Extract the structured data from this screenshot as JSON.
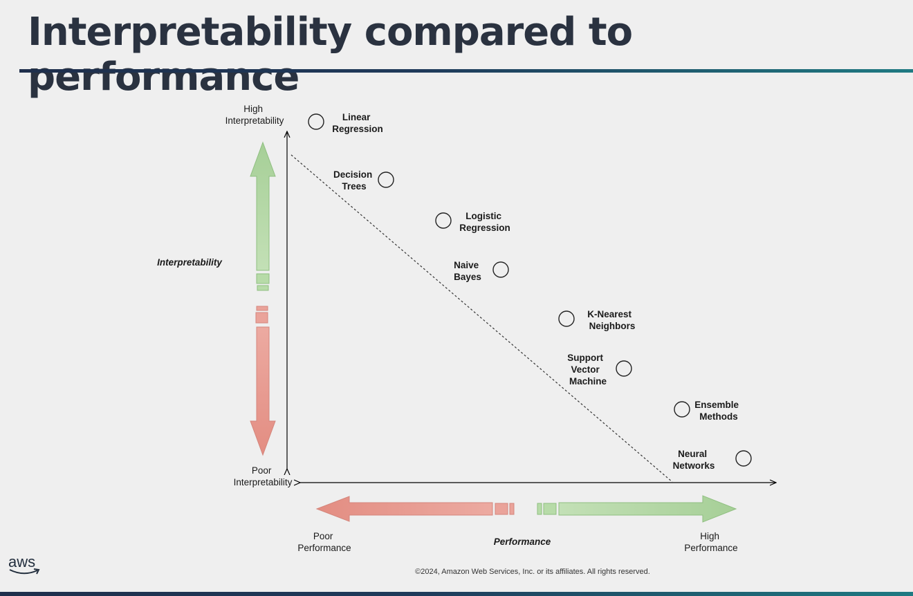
{
  "title": "Interpretability compared to performance",
  "y_axis": {
    "top_label": [
      "High",
      "Interpretability"
    ],
    "bottom_label": [
      "Poor",
      "Interpretability"
    ],
    "name": "Interpretability"
  },
  "x_axis": {
    "left_label": [
      "Poor",
      "Performance"
    ],
    "right_label": [
      "High",
      "Performance"
    ],
    "name": "Performance"
  },
  "models": [
    {
      "name": [
        "Linear",
        "Regression"
      ]
    },
    {
      "name": [
        "Decision",
        "Trees"
      ]
    },
    {
      "name": [
        "Logistic",
        "Regression"
      ]
    },
    {
      "name": [
        "Naive",
        "Bayes"
      ]
    },
    {
      "name": [
        "K-Nearest",
        "Neighbors"
      ]
    },
    {
      "name": [
        "Support",
        "Vector",
        "Machine"
      ]
    },
    {
      "name": [
        "Ensemble",
        "Methods"
      ]
    },
    {
      "name": [
        "Neural",
        "Networks"
      ]
    }
  ],
  "footer": {
    "brand": "aws",
    "copyright": "©2024, Amazon Web Services, Inc. or its affiliates. All rights reserved."
  },
  "colors": {
    "green_arrow": "#a9d29a",
    "red_arrow": "#e79a90",
    "title": "#2a3240"
  }
}
